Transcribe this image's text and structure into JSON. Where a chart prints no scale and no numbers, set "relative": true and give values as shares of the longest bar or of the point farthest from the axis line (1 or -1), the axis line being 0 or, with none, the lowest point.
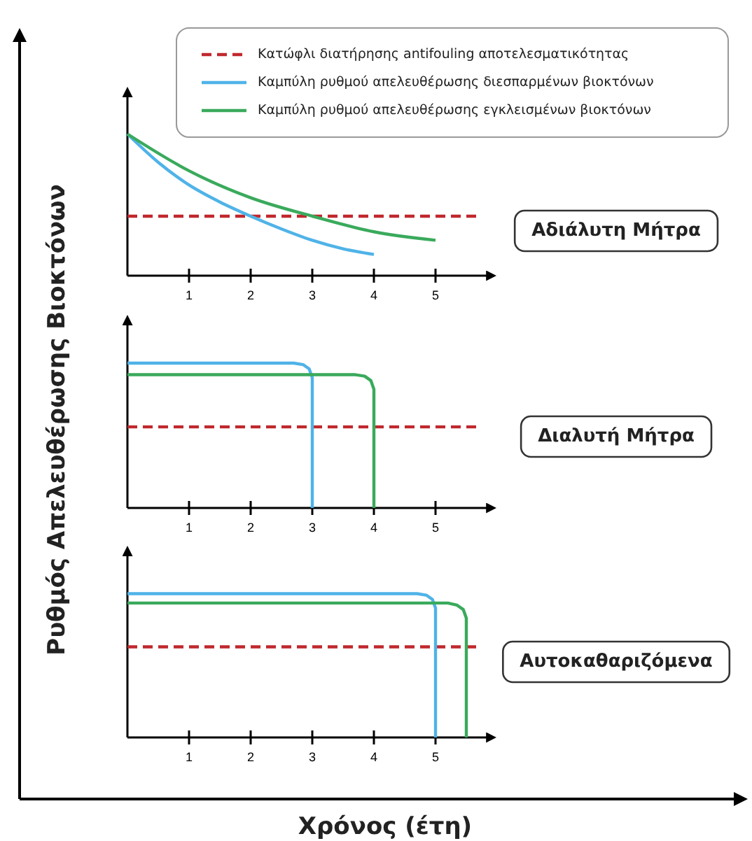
{
  "chart_data": [
    {
      "type": "line",
      "annotations": [
        "Αδιάλυτη Μήτρα"
      ],
      "ylabel": "Ρυθμός Απελευθέρωσης Βιοκτόνων",
      "relative": true,
      "legend": "top",
      "xlim": [
        0,
        5.9
      ],
      "xticks": [
        1,
        2,
        3,
        4,
        5
      ],
      "series": [
        {
          "name": "Καμπύλη ρυθμού απελευθέρωσης διεσπαρμένων βιοκτόνων",
          "color": "#4fb3e8",
          "x": [
            0,
            0.5,
            1,
            1.5,
            2,
            2.5,
            3,
            3.5,
            4
          ],
          "values": [
            1,
            0.8,
            0.64,
            0.52,
            0.42,
            0.33,
            0.25,
            0.19,
            0.15
          ]
        },
        {
          "name": "Καμπύλη ρυθμού απελευθέρωσης εγκλεισμένων βιοκτόνων",
          "color": "#3aaa5c",
          "x": [
            0,
            1,
            2,
            3,
            4,
            5
          ],
          "values": [
            1,
            0.74,
            0.55,
            0.42,
            0.31,
            0.25
          ]
        }
      ],
      "ref_lines": [
        {
          "axis": "y",
          "value": 0.42,
          "label": "Κατώφλι διατήρησης antifouling αποτελεσματικότητας",
          "color": "#c0282d",
          "line_style": "dashed"
        }
      ]
    },
    {
      "type": "line",
      "annotations": [
        "Διαλυτή Μήτρα"
      ],
      "relative": true,
      "xlim": [
        0,
        5.9
      ],
      "xticks": [
        1,
        2,
        3,
        4,
        5
      ],
      "series": [
        {
          "color": "#4fb3e8",
          "x": [
            0,
            2.7,
            2.85,
            2.95,
            3,
            3
          ],
          "values": [
            1,
            1,
            0.99,
            0.96,
            0.9,
            0
          ]
        },
        {
          "color": "#3aaa5c",
          "x": [
            0,
            3.7,
            3.85,
            3.95,
            4,
            4
          ],
          "values": [
            0.92,
            0.92,
            0.91,
            0.88,
            0.82,
            0
          ]
        }
      ],
      "ref_lines": [
        {
          "axis": "y",
          "value": 0.56,
          "color": "#c0282d",
          "line_style": "dashed"
        }
      ]
    },
    {
      "type": "line",
      "annotations": [
        "Αυτοκαθαριζόμενα"
      ],
      "xlabel": "Χρόνος (έτη)",
      "relative": true,
      "xlim": [
        0,
        5.9
      ],
      "xticks": [
        1,
        2,
        3,
        4,
        5
      ],
      "series": [
        {
          "color": "#4fb3e8",
          "x": [
            0,
            4.7,
            4.85,
            4.95,
            5,
            5
          ],
          "values": [
            1,
            1,
            0.99,
            0.96,
            0.9,
            0
          ]
        },
        {
          "color": "#3aaa5c",
          "x": [
            0,
            5.2,
            5.35,
            5.45,
            5.5,
            5.5
          ],
          "values": [
            0.935,
            0.935,
            0.92,
            0.89,
            0.83,
            0
          ]
        }
      ],
      "ref_lines": [
        {
          "axis": "y",
          "value": 0.63,
          "color": "#c0282d",
          "line_style": "dashed"
        }
      ]
    }
  ]
}
